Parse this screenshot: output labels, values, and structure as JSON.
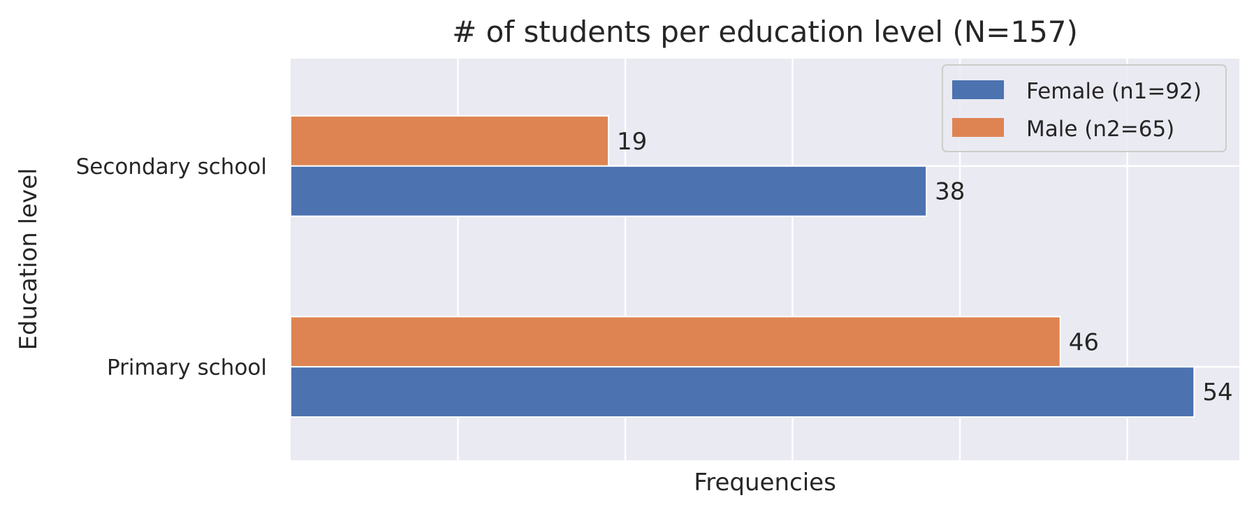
{
  "chart_data": {
    "type": "bar",
    "orientation": "horizontal",
    "title": "# of students per education level (N=157)",
    "xlabel": "Frequencies",
    "ylabel": "Education level",
    "categories": [
      "Secondary school",
      "Primary school"
    ],
    "series": [
      {
        "name": "Female (n1=92)",
        "values": [
          38,
          54
        ],
        "color": "#4c72b0"
      },
      {
        "name": "Male (n2=65)",
        "values": [
          19,
          46
        ],
        "color": "#dd8452"
      }
    ],
    "xlim": [
      0,
      56.7
    ],
    "x_gridlines": [
      10,
      20,
      30,
      40,
      50
    ],
    "grid": true,
    "background": "#eaeaf2",
    "legend_position": "top-right"
  }
}
